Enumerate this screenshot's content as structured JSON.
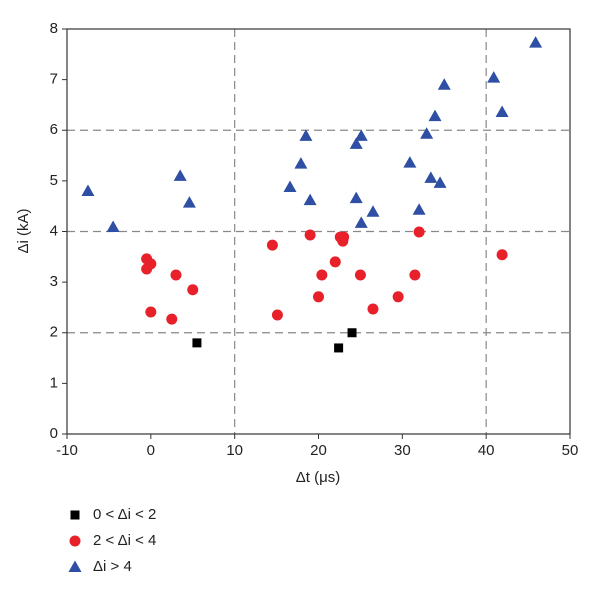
{
  "chart_data": {
    "type": "scatter",
    "x_label": "Δt (μs)",
    "y_label": "Δi (kA)",
    "xlim": [
      -10,
      50
    ],
    "ylim": [
      0,
      8
    ],
    "xticks": [
      -10,
      0,
      10,
      20,
      30,
      40,
      50
    ],
    "yticks": [
      0,
      1,
      2,
      3,
      4,
      5,
      6,
      7,
      8
    ],
    "x_grid_lines": [
      10,
      40
    ],
    "y_grid_lines": [
      2,
      4,
      6
    ],
    "legend_position": "bottom-left",
    "series": [
      {
        "name": "0 < Δi < 2",
        "color": "#000000",
        "marker": "square",
        "x": [
          5.5,
          22.4,
          24.0
        ],
        "values": [
          1.8,
          1.7,
          2.0
        ]
      },
      {
        "name": "2 < Δi < 4",
        "color": "#e8202a",
        "marker": "circle",
        "x": [
          -0.5,
          -0.5,
          0.0,
          0.0,
          3.0,
          2.5,
          5.0,
          14.5,
          15.1,
          19.0,
          20.4,
          20.0,
          22.0,
          22.6,
          22.9,
          23.0,
          25.0,
          26.5,
          29.5,
          31.5,
          32.0,
          41.9
        ],
        "values": [
          3.46,
          3.26,
          3.36,
          2.41,
          3.14,
          2.27,
          2.85,
          3.73,
          2.35,
          3.93,
          3.14,
          2.71,
          3.4,
          3.89,
          3.81,
          3.89,
          3.14,
          2.47,
          2.71,
          3.14,
          3.99,
          3.54
        ]
      },
      {
        "name": "Δi > 4",
        "color": "#2e4fa3",
        "marker": "triangle",
        "x": [
          -7.5,
          -4.5,
          3.5,
          4.6,
          16.6,
          17.9,
          18.5,
          19.0,
          24.5,
          25.1,
          24.5,
          25.1,
          26.5,
          30.9,
          32.0,
          32.9,
          33.4,
          33.9,
          34.5,
          35.0,
          40.9,
          41.9,
          45.9
        ],
        "values": [
          4.8,
          4.09,
          5.1,
          4.57,
          4.88,
          5.34,
          5.89,
          4.62,
          5.73,
          5.89,
          4.66,
          4.17,
          4.39,
          5.36,
          4.43,
          5.93,
          5.06,
          6.28,
          4.96,
          6.9,
          7.04,
          6.36,
          7.73
        ]
      }
    ]
  }
}
